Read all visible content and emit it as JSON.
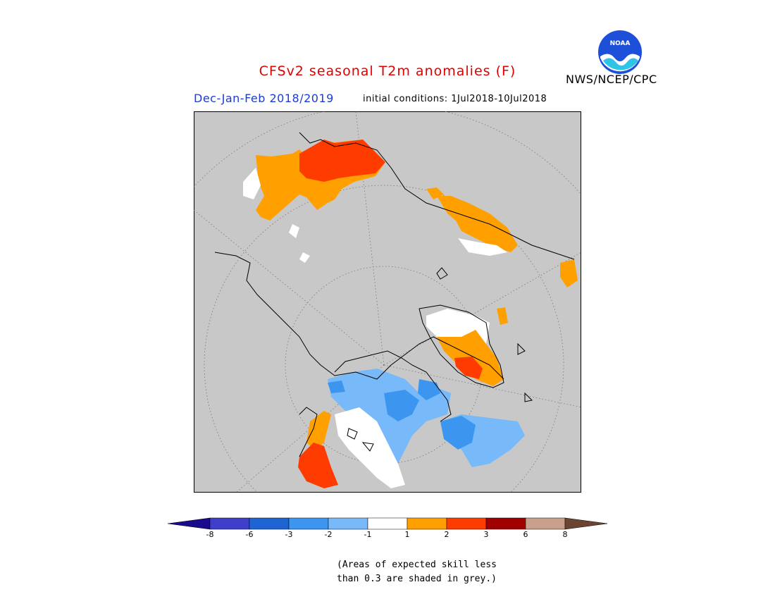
{
  "header": {
    "title": "CFSv2 seasonal T2m anomalies (F)",
    "season": "Dec-Jan-Feb 2018/2019",
    "initial_conditions": "initial conditions: 1Jul2018-10Jul2018",
    "agency": "NWS/NCEP/CPC",
    "logo_text": "NOAA"
  },
  "map": {
    "projection": "north-polar-stereographic",
    "background_color": "#c8c8c8",
    "graticule": "dotted"
  },
  "legend": {
    "under_color": "#1a0a8c",
    "over_color": "#6b4532",
    "bins": [
      {
        "color": "#3e3ec8"
      },
      {
        "color": "#1e64d2"
      },
      {
        "color": "#3c96f0"
      },
      {
        "color": "#78b9fa"
      },
      {
        "color": "#ffffff"
      },
      {
        "color": "#ffa000"
      },
      {
        "color": "#ff3c00"
      },
      {
        "color": "#a00000"
      },
      {
        "color": "#c8a08c"
      }
    ],
    "tick_labels": [
      "-8",
      "-6",
      "-3",
      "-2",
      "-1",
      "1",
      "2",
      "3",
      "6",
      "8"
    ]
  },
  "footnote": {
    "line1": "(Areas of expected skill less",
    "line2": "than 0.3 are shaded in grey.)"
  }
}
